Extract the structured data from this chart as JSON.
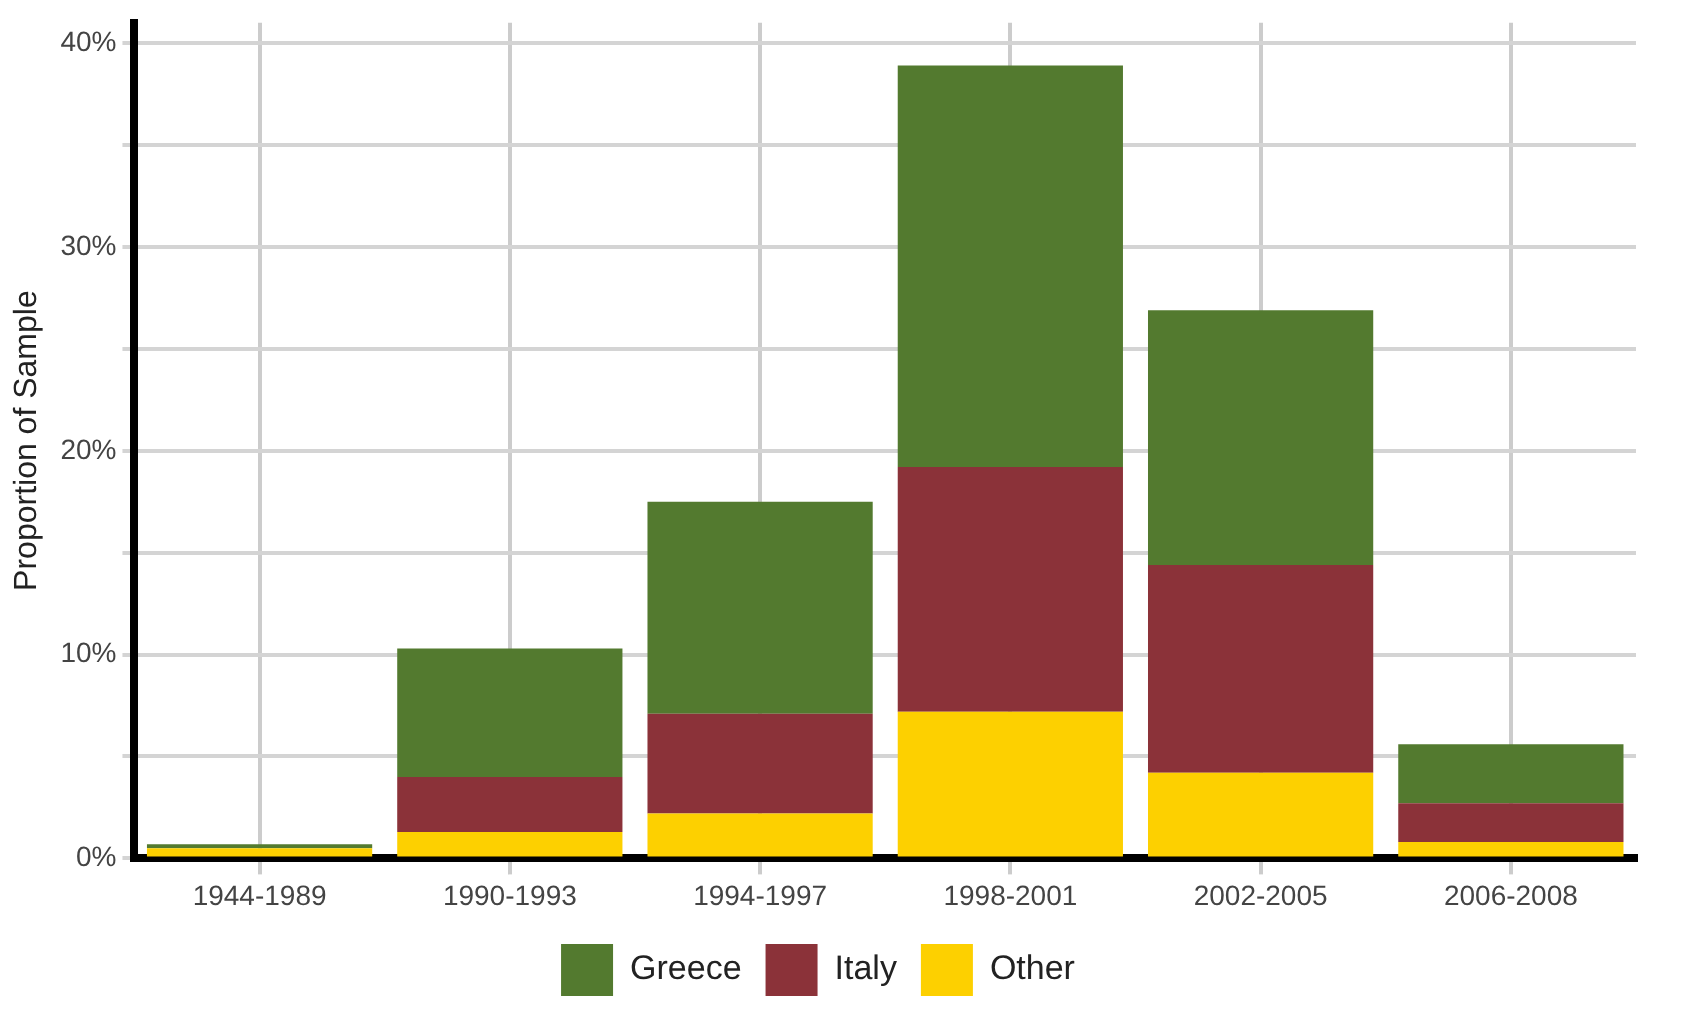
{
  "chart_data": {
    "type": "bar",
    "stacked": true,
    "ylabel": "Proportion of Sample",
    "categories": [
      "1944-1989",
      "1990-1993",
      "1994-1997",
      "1998-2001",
      "2002-2005",
      "2006-2008"
    ],
    "series": [
      {
        "name": "Other",
        "color": "#fdd000",
        "values": [
          0.5,
          1.3,
          2.2,
          7.2,
          4.2,
          0.8
        ]
      },
      {
        "name": "Italy",
        "color": "#8b3239",
        "values": [
          0.0,
          2.7,
          4.9,
          12.0,
          10.2,
          1.9
        ]
      },
      {
        "name": "Greece",
        "color": "#537a2f",
        "values": [
          0.2,
          6.3,
          10.4,
          19.7,
          12.5,
          2.9
        ]
      }
    ],
    "ylim": [
      0,
      41
    ],
    "yticks": [
      {
        "value": 0,
        "label": "0%"
      },
      {
        "value": 5,
        "label": null
      },
      {
        "value": 10,
        "label": "10%"
      },
      {
        "value": 15,
        "label": null
      },
      {
        "value": 20,
        "label": "20%"
      },
      {
        "value": 25,
        "label": null
      },
      {
        "value": 30,
        "label": "30%"
      },
      {
        "value": 35,
        "label": null
      },
      {
        "value": 40,
        "label": "40%"
      }
    ],
    "grid": true,
    "legend": "bottom"
  }
}
